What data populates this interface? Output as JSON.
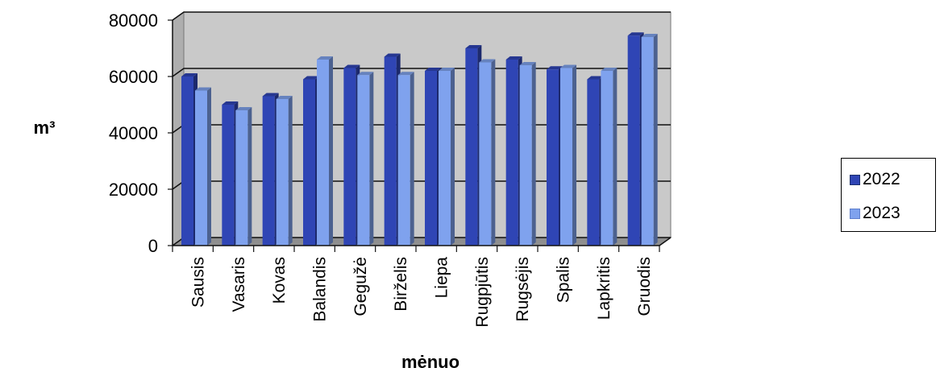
{
  "chart_data": {
    "type": "bar",
    "title": "",
    "xlabel": "mėnuo",
    "ylabel": "m³",
    "ylim": [
      0,
      80000
    ],
    "yticks": [
      "0",
      "20000",
      "40000",
      "60000",
      "80000"
    ],
    "categories": [
      "Sausis",
      "Vasaris",
      "Kovas",
      "Balandis",
      "Gegužė",
      "Birželis",
      "Liepa",
      "Rugpjūtis",
      "Rugsėjis",
      "Spalis",
      "Lapkritis",
      "Gruodis"
    ],
    "series": [
      {
        "name": "2022",
        "values": [
          60000,
          50000,
          53000,
          59000,
          63000,
          67000,
          62000,
          70000,
          66000,
          62500,
          59000,
          74500
        ]
      },
      {
        "name": "2023",
        "values": [
          55000,
          48000,
          52000,
          66000,
          60500,
          60500,
          62000,
          65000,
          64000,
          63000,
          62000,
          74000
        ]
      }
    ],
    "grid": true,
    "legend_position": "right",
    "colors": {
      "series_2022": "#2f45b5",
      "series_2023": "#7fa2ee",
      "plot_background": "#c9c9c9"
    }
  }
}
